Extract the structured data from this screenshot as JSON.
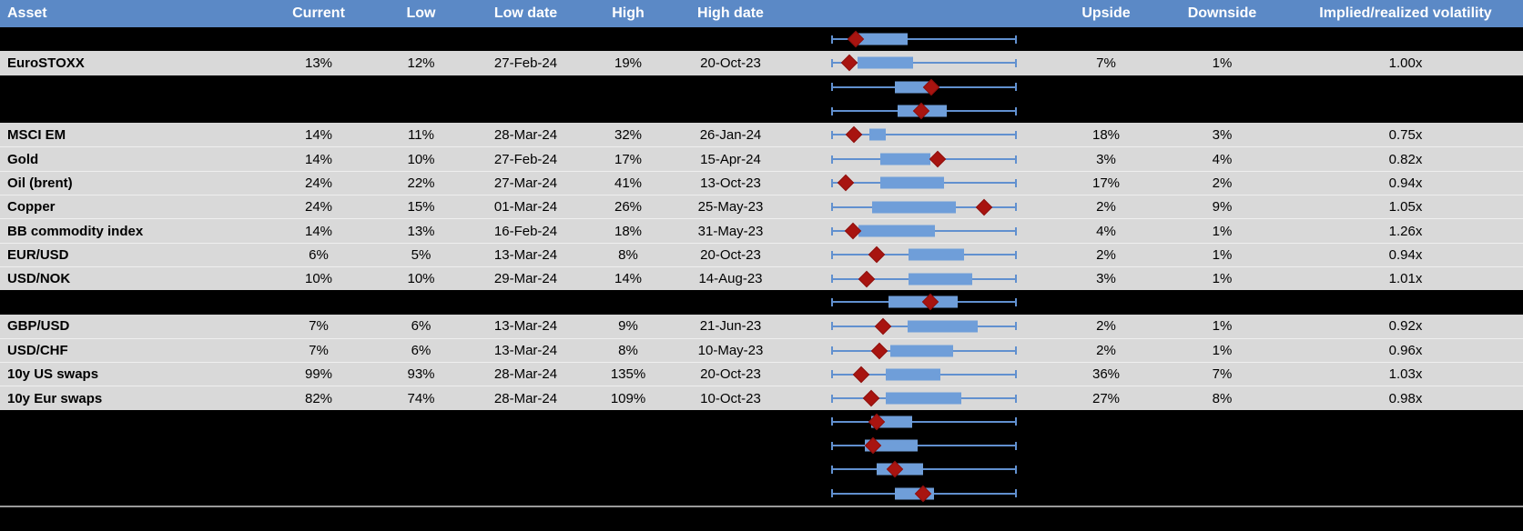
{
  "header": {
    "columns": [
      "Asset",
      "Current",
      "Low",
      "Low date",
      "High",
      "High date",
      "",
      "Upside",
      "Downside",
      "Implied/realized volatility"
    ]
  },
  "colors": {
    "header_bg": "#5b89c6",
    "header_text": "#ffffff",
    "row_bg": "#d9d9d9",
    "hidden_row_bg": "#000000",
    "whisker_blue": "#6190cf",
    "box_blue": "#6f9ed9",
    "diamond_red": "#a81410",
    "footer_line_gray": "#9a9a9a",
    "text": "#000000"
  },
  "table": {
    "rows": [
      {
        "type": "hidden",
        "asset": "",
        "current": "",
        "low": "",
        "low_date": "",
        "high": "",
        "high_date": "",
        "upside": "",
        "downside": "",
        "implied": ""
      },
      {
        "type": "data",
        "asset": "EuroSTOXX",
        "current": "13%",
        "low": "12%",
        "low_date": "27-Feb-24",
        "high": "19%",
        "high_date": "20-Oct-23",
        "upside": "7%",
        "downside": "1%",
        "implied": "1.00x"
      },
      {
        "type": "hidden",
        "asset": "",
        "current": "",
        "low": "",
        "low_date": "",
        "high": "",
        "high_date": "",
        "upside": "",
        "downside": "",
        "implied": ""
      },
      {
        "type": "hidden",
        "asset": "",
        "current": "",
        "low": "",
        "low_date": "",
        "high": "",
        "high_date": "",
        "upside": "",
        "downside": "",
        "implied": ""
      },
      {
        "type": "data",
        "asset": "MSCI EM",
        "current": "14%",
        "low": "11%",
        "low_date": "28-Mar-24",
        "high": "32%",
        "high_date": "26-Jan-24",
        "upside": "18%",
        "downside": "3%",
        "implied": "0.75x"
      },
      {
        "type": "data",
        "asset": "Gold",
        "current": "14%",
        "low": "10%",
        "low_date": "27-Feb-24",
        "high": "17%",
        "high_date": "15-Apr-24",
        "upside": "3%",
        "downside": "4%",
        "implied": "0.82x"
      },
      {
        "type": "data",
        "asset": "Oil (brent)",
        "current": "24%",
        "low": "22%",
        "low_date": "27-Mar-24",
        "high": "41%",
        "high_date": "13-Oct-23",
        "upside": "17%",
        "downside": "2%",
        "implied": "0.94x"
      },
      {
        "type": "data",
        "asset": "Copper",
        "current": "24%",
        "low": "15%",
        "low_date": "01-Mar-24",
        "high": "26%",
        "high_date": "25-May-23",
        "upside": "2%",
        "downside": "9%",
        "implied": "1.05x"
      },
      {
        "type": "data",
        "asset": "BB commodity index",
        "current": "14%",
        "low": "13%",
        "low_date": "16-Feb-24",
        "high": "18%",
        "high_date": "31-May-23",
        "upside": "4%",
        "downside": "1%",
        "implied": "1.26x"
      },
      {
        "type": "data",
        "asset": "EUR/USD",
        "current": "6%",
        "low": "5%",
        "low_date": "13-Mar-24",
        "high": "8%",
        "high_date": "20-Oct-23",
        "upside": "2%",
        "downside": "1%",
        "implied": "0.94x"
      },
      {
        "type": "data",
        "asset": "USD/NOK",
        "current": "10%",
        "low": "10%",
        "low_date": "29-Mar-24",
        "high": "14%",
        "high_date": "14-Aug-23",
        "upside": "3%",
        "downside": "1%",
        "implied": "1.01x"
      },
      {
        "type": "hidden",
        "asset": "",
        "current": "",
        "low": "",
        "low_date": "",
        "high": "",
        "high_date": "",
        "upside": "",
        "downside": "",
        "implied": ""
      },
      {
        "type": "data",
        "asset": "GBP/USD",
        "current": "7%",
        "low": "6%",
        "low_date": "13-Mar-24",
        "high": "9%",
        "high_date": "21-Jun-23",
        "upside": "2%",
        "downside": "1%",
        "implied": "0.92x"
      },
      {
        "type": "data",
        "asset": "USD/CHF",
        "current": "7%",
        "low": "6%",
        "low_date": "13-Mar-24",
        "high": "8%",
        "high_date": "10-May-23",
        "upside": "2%",
        "downside": "1%",
        "implied": "0.96x"
      },
      {
        "type": "data",
        "asset": "10y US swaps",
        "current": "99%",
        "low": "93%",
        "low_date": "28-Mar-24",
        "high": "135%",
        "high_date": "20-Oct-23",
        "upside": "36%",
        "downside": "7%",
        "implied": "1.03x"
      },
      {
        "type": "data",
        "asset": "10y Eur swaps",
        "current": "82%",
        "low": "74%",
        "low_date": "28-Mar-24",
        "high": "109%",
        "high_date": "10-Oct-23",
        "upside": "27%",
        "downside": "8%",
        "implied": "0.98x"
      },
      {
        "type": "hidden",
        "asset": "",
        "current": "",
        "low": "",
        "low_date": "",
        "high": "",
        "high_date": "",
        "upside": "",
        "downside": "",
        "implied": ""
      },
      {
        "type": "hidden",
        "asset": "",
        "current": "",
        "low": "",
        "low_date": "",
        "high": "",
        "high_date": "",
        "upside": "",
        "downside": "",
        "implied": ""
      },
      {
        "type": "hidden",
        "asset": "",
        "current": "",
        "low": "",
        "low_date": "",
        "high": "",
        "high_date": "",
        "upside": "",
        "downside": "",
        "implied": ""
      },
      {
        "type": "hidden",
        "asset": "",
        "current": "",
        "low": "",
        "low_date": "",
        "high": "",
        "high_date": "",
        "upside": "",
        "downside": "",
        "implied": ""
      }
    ]
  },
  "chart_data": {
    "type": "boxplot",
    "orientation": "horizontal",
    "title": "",
    "legend": "none",
    "axis": "unlabeled; whisker span normalized 0-1 per row, all rows share identical whisker extent",
    "marker_meaning": "red diamond = current level within low-high range",
    "rows": [
      {
        "label": "(hidden row 1)",
        "whisker": [
          0,
          1
        ],
        "box": [
          0.147,
          0.41
        ],
        "marker": 0.132
      },
      {
        "label": "EuroSTOXX",
        "whisker": [
          0,
          1
        ],
        "box": [
          0.141,
          0.441
        ],
        "marker": 0.097
      },
      {
        "label": "(hidden row 2)",
        "whisker": [
          0,
          1
        ],
        "box": [
          0.343,
          0.534
        ],
        "marker": 0.539
      },
      {
        "label": "(hidden row 3)",
        "whisker": [
          0,
          1
        ],
        "box": [
          0.358,
          0.623
        ],
        "marker": 0.485
      },
      {
        "label": "MSCI EM",
        "whisker": [
          0,
          1
        ],
        "box": [
          0.206,
          0.294
        ],
        "marker": 0.123
      },
      {
        "label": "Gold",
        "whisker": [
          0,
          1
        ],
        "box": [
          0.265,
          0.534
        ],
        "marker": 0.574
      },
      {
        "label": "Oil (brent)",
        "whisker": [
          0,
          1
        ],
        "box": [
          0.265,
          0.608
        ],
        "marker": 0.078
      },
      {
        "label": "Copper",
        "whisker": [
          0,
          1
        ],
        "box": [
          0.221,
          0.672
        ],
        "marker": 0.824
      },
      {
        "label": "BB commodity index",
        "whisker": [
          0,
          1
        ],
        "box": [
          0.147,
          0.559
        ],
        "marker": 0.118
      },
      {
        "label": "EUR/USD",
        "whisker": [
          0,
          1
        ],
        "box": [
          0.417,
          0.716
        ],
        "marker": 0.245
      },
      {
        "label": "USD/NOK",
        "whisker": [
          0,
          1
        ],
        "box": [
          0.417,
          0.76
        ],
        "marker": 0.191
      },
      {
        "label": "(hidden row 4)",
        "whisker": [
          0,
          1
        ],
        "box": [
          0.309,
          0.681
        ],
        "marker": 0.534
      },
      {
        "label": "GBP/USD",
        "whisker": [
          0,
          1
        ],
        "box": [
          0.412,
          0.789
        ],
        "marker": 0.279
      },
      {
        "label": "USD/CHF",
        "whisker": [
          0,
          1
        ],
        "box": [
          0.319,
          0.657
        ],
        "marker": 0.26
      },
      {
        "label": "10y US swaps",
        "whisker": [
          0,
          1
        ],
        "box": [
          0.294,
          0.588
        ],
        "marker": 0.162
      },
      {
        "label": "10y Eur swaps",
        "whisker": [
          0,
          1
        ],
        "box": [
          0.294,
          0.701
        ],
        "marker": 0.216
      },
      {
        "label": "(hidden row 5)",
        "whisker": [
          0,
          1
        ],
        "box": [
          0.216,
          0.436
        ],
        "marker": 0.245
      },
      {
        "label": "(hidden row 6)",
        "whisker": [
          0,
          1
        ],
        "box": [
          0.181,
          0.466
        ],
        "marker": 0.225
      },
      {
        "label": "(hidden row 7)",
        "whisker": [
          0,
          1
        ],
        "box": [
          0.245,
          0.495
        ],
        "marker": 0.343
      },
      {
        "label": "(hidden row 8)",
        "whisker": [
          0,
          1
        ],
        "box": [
          0.343,
          0.554
        ],
        "marker": 0.495
      }
    ]
  }
}
